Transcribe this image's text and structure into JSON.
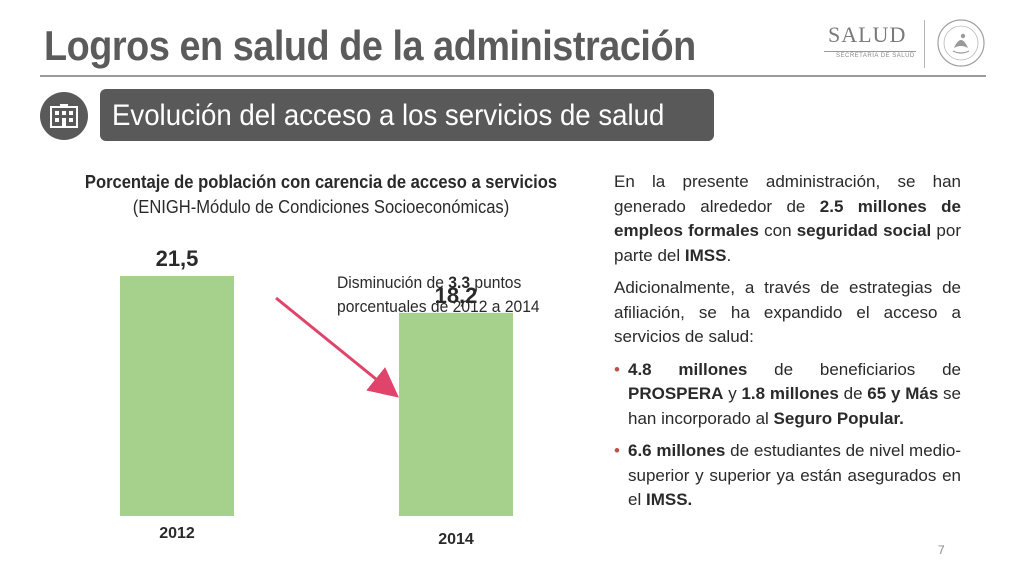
{
  "header": {
    "title": "Logros en salud de la administración",
    "logo": {
      "text": "SALUD",
      "subtext": "SECRETARÍA DE SALUD"
    }
  },
  "section": {
    "icon": "hospital-building-icon",
    "banner": "Evolución del acceso a los servicios de salud"
  },
  "chart_data": {
    "type": "bar",
    "title": "Porcentaje de población con carencia de acceso a servicios",
    "subtitle": "(ENIGH-Módulo de Condiciones Socioeconómicas)",
    "categories": [
      "2012",
      "2014"
    ],
    "values": [
      21.5,
      18.2
    ],
    "value_labels": [
      "21,5",
      "18,2"
    ],
    "bar_color": "#a6d18c",
    "arrow_color": "#e0446a",
    "annotation": {
      "prefix": "Disminución de ",
      "value": "3.3",
      "suffix": " puntos porcentuales de 2012 a 2014"
    }
  },
  "body": {
    "p1": {
      "t1": "En la presente administración, se han generado alrededor de ",
      "b1": "2.5 millones de empleos formales",
      "t2": " con ",
      "b2": "seguridad social",
      "t3": " por parte del ",
      "b3": "IMSS",
      "t4": "."
    },
    "p2": "Adicionalmente, a través de estrategias de afiliación, se ha expandido el acceso a servicios de salud:",
    "bullet1": {
      "b1": "4.8 millones",
      "t1": " de beneficiarios de ",
      "b2": "PROSPERA",
      "t2": " y ",
      "b3": "1.8 millones",
      "t3": " de ",
      "b4": "65 y Más",
      "t4": " se han incorporado al ",
      "b5": "Seguro Popular.",
      "t5": ""
    },
    "bullet2": {
      "b1": "6.6 millones",
      "t1": " de estudiantes de nivel medio-superior y superior ya están asegurados en el ",
      "b2": "IMSS.",
      "t2": ""
    },
    "bullet_glyph": "•",
    "accent_color": "#c0504d"
  },
  "footer": {
    "page_number": "7"
  }
}
